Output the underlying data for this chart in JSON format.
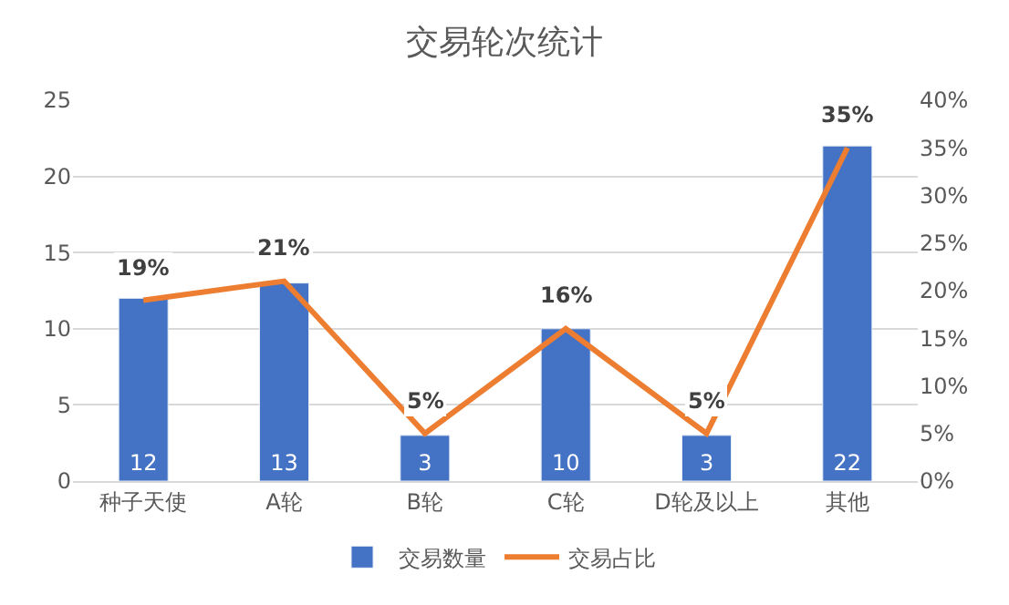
{
  "chart_data": {
    "type": "bar",
    "title": "交易轮次统计",
    "categories": [
      "种子天使",
      "A轮",
      "B轮",
      "C轮",
      "D轮及以上",
      "其他"
    ],
    "series": [
      {
        "name": "交易数量",
        "color": "#4472c4",
        "values": [
          12,
          13,
          3,
          10,
          3,
          22
        ],
        "value_labels": [
          "12",
          "13",
          "3",
          "10",
          "3",
          "22"
        ]
      },
      {
        "name": "交易占比",
        "type": "line",
        "axis": "y2",
        "color": "#ed7d31",
        "values": [
          19,
          21,
          5,
          16,
          5,
          35
        ],
        "value_labels": [
          "19%",
          "21%",
          "5%",
          "16%",
          "5%",
          "35%"
        ]
      }
    ],
    "ylim": [
      0,
      25
    ],
    "yticks": [
      0,
      5,
      10,
      15,
      20,
      25
    ],
    "y2lim": [
      0,
      40
    ],
    "y2ticks": [
      {
        "value": 0,
        "label": "0%"
      },
      {
        "value": 5,
        "label": "5%"
      },
      {
        "value": 10,
        "label": "10%"
      },
      {
        "value": 15,
        "label": "15%"
      },
      {
        "value": 20,
        "label": "20%"
      },
      {
        "value": 25,
        "label": "25%"
      },
      {
        "value": 30,
        "label": "30%"
      },
      {
        "value": 35,
        "label": "35%"
      },
      {
        "value": 40,
        "label": "40%"
      }
    ],
    "grid": "y",
    "legend": "bottom",
    "marker": "none",
    "line_style": "solid"
  }
}
